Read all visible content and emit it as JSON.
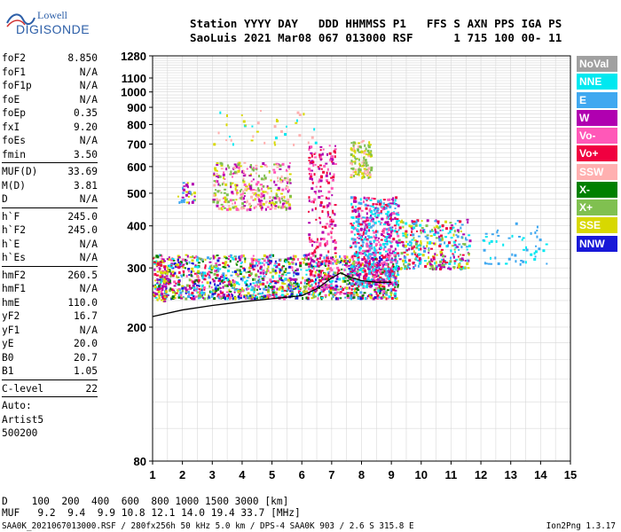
{
  "logo": {
    "top": "Lowell",
    "bottom": "DIGISONDE"
  },
  "header": {
    "line1": "Station YYYY DAY   DDD HHMMSS P1   FFS S AXN PPS IGA PS",
    "line2": "SaoLuis 2021 Mar08 067 013000 RSF      1 715 100 00- 11"
  },
  "params": {
    "group1": [
      {
        "k": "foF2",
        "v": "8.850"
      },
      {
        "k": "foF1",
        "v": "N/A"
      },
      {
        "k": "foF1p",
        "v": "N/A"
      },
      {
        "k": "foE",
        "v": "N/A"
      },
      {
        "k": "foEp",
        "v": "0.35"
      },
      {
        "k": "fxI",
        "v": "9.20"
      },
      {
        "k": "foEs",
        "v": "N/A"
      },
      {
        "k": "fmin",
        "v": "3.50"
      }
    ],
    "group2": [
      {
        "k": "MUF(D)",
        "v": "33.69"
      },
      {
        "k": "M(D)",
        "v": "3.81"
      },
      {
        "k": "D",
        "v": "N/A"
      }
    ],
    "group3": [
      {
        "k": "h`F",
        "v": "245.0"
      },
      {
        "k": "h`F2",
        "v": "245.0"
      },
      {
        "k": "h`E",
        "v": "N/A"
      },
      {
        "k": "h`Es",
        "v": "N/A"
      }
    ],
    "group4": [
      {
        "k": "hmF2",
        "v": "260.5"
      },
      {
        "k": "hmF1",
        "v": "N/A"
      },
      {
        "k": "hmE",
        "v": "110.0"
      },
      {
        "k": "yF2",
        "v": "16.7"
      },
      {
        "k": "yF1",
        "v": "N/A"
      },
      {
        "k": "yE",
        "v": "20.0"
      },
      {
        "k": "B0",
        "v": "20.7"
      },
      {
        "k": "B1",
        "v": "1.05"
      }
    ],
    "group5": [
      {
        "k": "C-level",
        "v": "22"
      }
    ],
    "auto": [
      "Auto:",
      "Artist5",
      "500200"
    ]
  },
  "legend": [
    {
      "label": "NoVal",
      "color": "#a0a0a0"
    },
    {
      "label": "NNE",
      "color": "#00e8f0"
    },
    {
      "label": "E",
      "color": "#40a8f0"
    },
    {
      "label": "W",
      "color": "#b000b0"
    },
    {
      "label": "Vo-",
      "color": "#ff58b8"
    },
    {
      "label": "Vo+",
      "color": "#f00040"
    },
    {
      "label": "SSW",
      "color": "#ffb0b0"
    },
    {
      "label": "X-",
      "color": "#008000"
    },
    {
      "label": "X+",
      "color": "#80c050"
    },
    {
      "label": "SSE",
      "color": "#d8d800"
    },
    {
      "label": "NNW",
      "color": "#1818d8"
    }
  ],
  "footer": {
    "d_line": "D    100  200  400  600  800 1000 1500 3000 [km]",
    "muf_line": "MUF   9.2  9.4  9.9 10.8 12.1 14.0 19.4 33.7 [MHz]",
    "source": "SAA0K_2021067013000.RSF / 280fx256h 50 kHz 5.0 km / DPS-4 SAA0K 903 / 2.6 S 315.8 E",
    "version": "Ion2Png 1.3.17"
  },
  "chart_data": {
    "type": "scatter",
    "x_ticks": [
      "1",
      "2",
      "3",
      "4",
      "5",
      "6",
      "7",
      "8",
      "9",
      "10",
      "11",
      "12",
      "13",
      "14",
      "15"
    ],
    "y_ticks": [
      "80",
      "200",
      "300",
      "400",
      "500",
      "600",
      "700",
      "800",
      "900",
      "1000",
      "1100",
      "1280"
    ],
    "xlim": [
      1,
      15
    ],
    "ylim": [
      80,
      1280
    ],
    "y_scale": "log",
    "grid": true,
    "legend_placement": "right",
    "trace": [
      [
        1,
        215
      ],
      [
        2,
        225
      ],
      [
        3,
        232
      ],
      [
        4,
        238
      ],
      [
        5,
        243
      ],
      [
        6,
        248
      ],
      [
        6.5,
        260
      ],
      [
        7,
        280
      ],
      [
        7.3,
        290
      ],
      [
        7.6,
        282
      ],
      [
        8,
        275
      ],
      [
        8.5,
        272
      ],
      [
        9,
        272
      ]
    ],
    "clusters": [
      {
        "x": [
          1,
          9.2
        ],
        "y": [
          245,
          330
        ],
        "n": 1500,
        "colors": [
          "#f00040",
          "#ff58b8",
          "#b000b0",
          "#40a8f0",
          "#d8d800",
          "#80c050",
          "#008000",
          "#1818d8",
          "#00e8f0"
        ]
      },
      {
        "x": [
          3,
          5.6
        ],
        "y": [
          450,
          620
        ],
        "n": 360,
        "colors": [
          "#d8d800",
          "#b000b0",
          "#ff58b8",
          "#ffb0b0",
          "#80c050"
        ]
      },
      {
        "x": [
          6.2,
          7.1
        ],
        "y": [
          260,
          700
        ],
        "n": 260,
        "colors": [
          "#b000b0",
          "#f00040",
          "#ff58b8"
        ]
      },
      {
        "x": [
          7.6,
          8.3
        ],
        "y": [
          560,
          720
        ],
        "n": 120,
        "colors": [
          "#d8d800",
          "#80c050",
          "#ffb0b0"
        ]
      },
      {
        "x": [
          7.6,
          9.2
        ],
        "y": [
          270,
          490
        ],
        "n": 620,
        "colors": [
          "#b000b0",
          "#f00040",
          "#ff58b8",
          "#40a8f0",
          "#00e8f0"
        ]
      },
      {
        "x": [
          9.2,
          11.6
        ],
        "y": [
          300,
          420
        ],
        "n": 350,
        "colors": [
          "#d8d800",
          "#80c050",
          "#40a8f0",
          "#00e8f0",
          "#f00040",
          "#b000b0"
        ]
      },
      {
        "x": [
          12,
          14.2
        ],
        "y": [
          310,
          410
        ],
        "n": 55,
        "colors": [
          "#00e8f0",
          "#40a8f0"
        ]
      },
      {
        "x": [
          1.8,
          2.4
        ],
        "y": [
          470,
          540
        ],
        "n": 40,
        "colors": [
          "#d8d800",
          "#b000b0",
          "#40a8f0"
        ]
      },
      {
        "x": [
          1,
          1.5
        ],
        "y": [
          240,
          320
        ],
        "n": 70,
        "colors": [
          "#b000b0",
          "#d8d800",
          "#f00040"
        ]
      },
      {
        "x": [
          3,
          6.5
        ],
        "y": [
          700,
          900
        ],
        "n": 40,
        "colors": [
          "#ffb0b0",
          "#d8d800",
          "#00e8f0"
        ]
      }
    ]
  }
}
